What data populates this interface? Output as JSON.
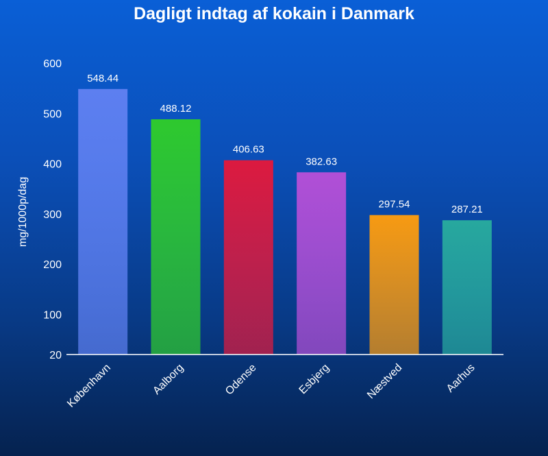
{
  "chart_data": {
    "type": "bar",
    "title": "Dagligt indtag af kokain i Danmark",
    "xlabel": "",
    "ylabel": "mg/1000p/dag",
    "categories": [
      "København",
      "Aalborg",
      "Odense",
      "Esbjerg",
      "Næstved",
      "Aarhus"
    ],
    "values": [
      548.44,
      488.12,
      406.63,
      382.63,
      297.54,
      287.21
    ],
    "data_labels": [
      "548.44",
      "488.12",
      "406.63",
      "382.63",
      "297.54",
      "287.21"
    ],
    "colors": [
      "#5d7ff0",
      "#2ec92e",
      "#dc1a3f",
      "#b14fd6",
      "#f79a12",
      "#27a89e"
    ],
    "yticks": [
      20,
      100,
      200,
      300,
      400,
      500,
      600
    ],
    "ytick_labels": [
      "20",
      "100",
      "200",
      "300",
      "400",
      "500",
      "600"
    ],
    "ylim": [
      20,
      600
    ],
    "grid": false,
    "legend": "none"
  }
}
